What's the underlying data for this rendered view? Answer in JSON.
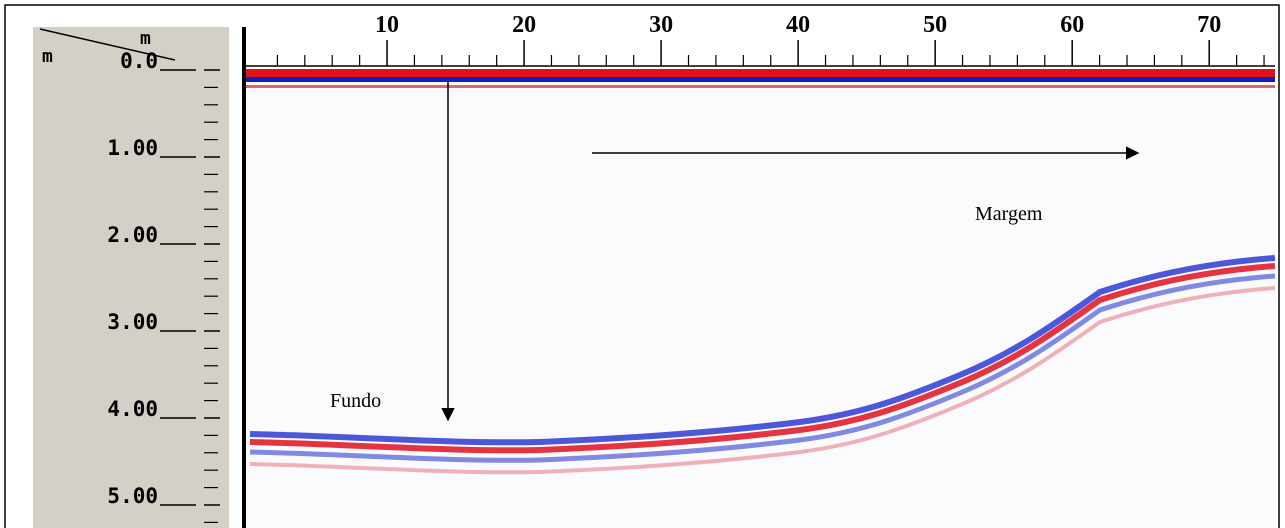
{
  "chart_data": {
    "type": "radargram",
    "x_unit": "m",
    "y_unit": "m",
    "xlim": [
      0,
      74.8
    ],
    "ylim": [
      0,
      5.26
    ],
    "xticks": [
      10,
      20,
      30,
      40,
      50,
      60,
      70
    ],
    "xminorticks": [
      2,
      4,
      6,
      8,
      12,
      14,
      16,
      18,
      22,
      24,
      26,
      28,
      32,
      34,
      36,
      38,
      42,
      44,
      46,
      48,
      52,
      54,
      56,
      58,
      62,
      64,
      66,
      68,
      72,
      74
    ],
    "yticks": [
      {
        "value": 0,
        "label": "0.0"
      },
      {
        "value": 1,
        "label": "1.00"
      },
      {
        "value": 2,
        "label": "2.00"
      },
      {
        "value": 3,
        "label": "3.00"
      },
      {
        "value": 4,
        "label": "4.00"
      },
      {
        "value": 5,
        "label": "5.00"
      }
    ],
    "yminorticks": [
      0.2,
      0.4,
      0.6,
      0.8,
      1.2,
      1.4,
      1.6,
      1.8,
      2.2,
      2.4,
      2.6,
      2.8,
      3.2,
      3.4,
      3.6,
      3.8,
      4.2,
      4.4,
      4.6,
      4.8,
      5.2
    ],
    "annotations": [
      "Fundo",
      "Margem"
    ]
  }
}
